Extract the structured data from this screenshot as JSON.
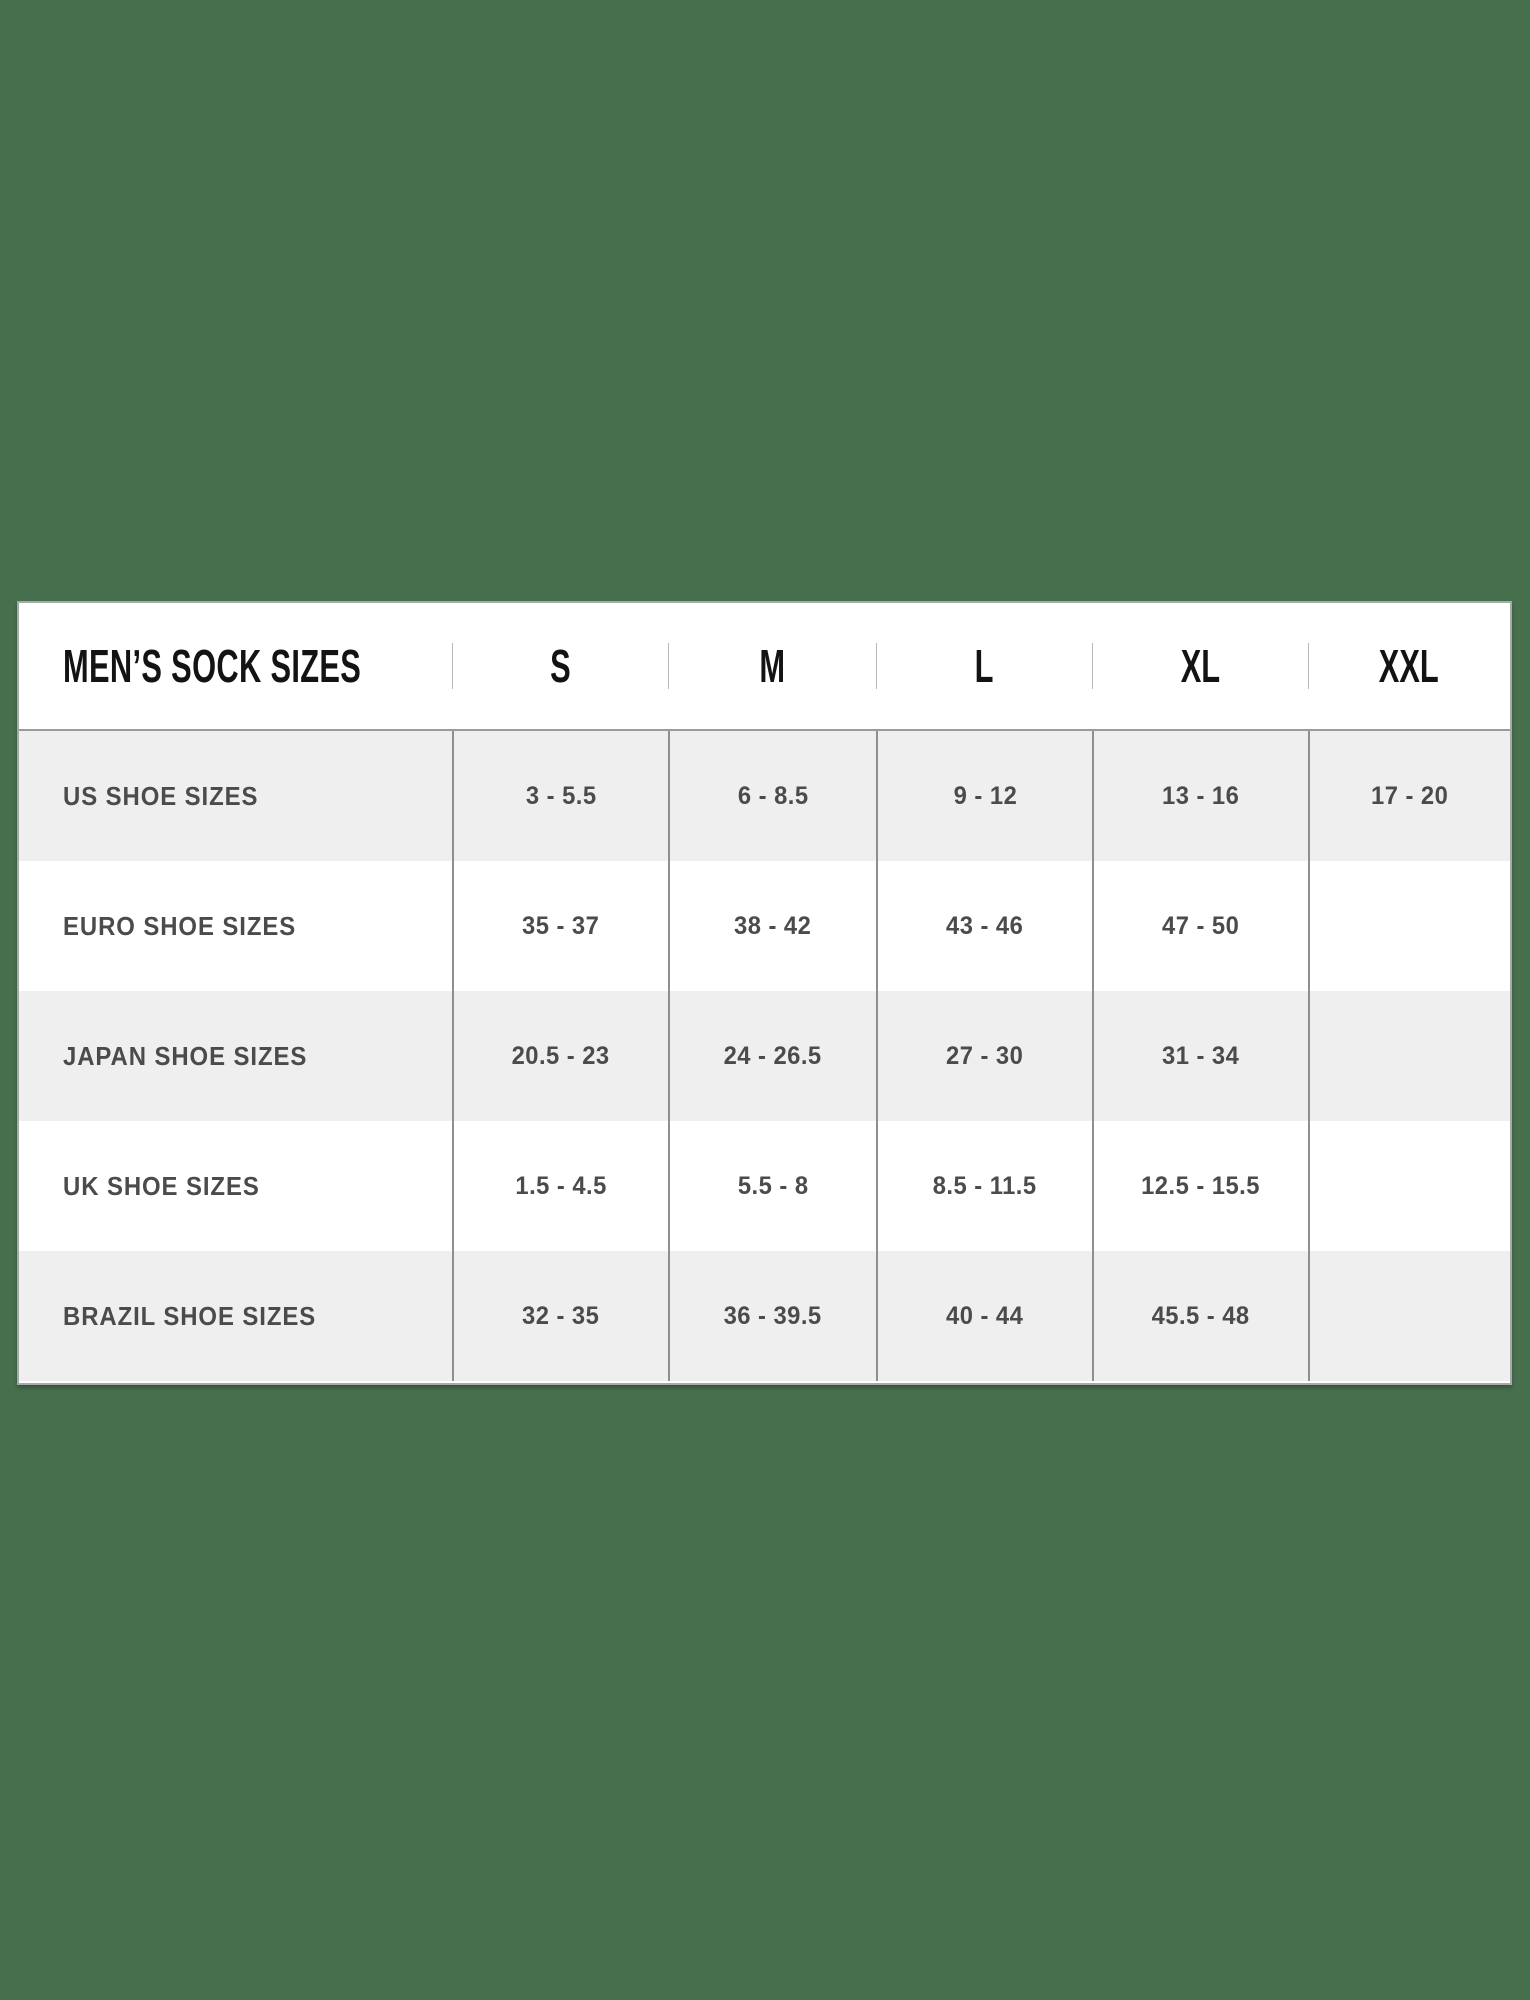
{
  "colors": {
    "background": "#46704d",
    "table_background": "#ffffff",
    "shaded_row": "#efefef",
    "border": "#a9a9a9",
    "divider": "#8f8f8f",
    "header_text": "#131313",
    "body_text": "#4b4b4b"
  },
  "chart_data": {
    "type": "table",
    "title": "MEN’S SOCK SIZES",
    "sizes": [
      "S",
      "M",
      "L",
      "XL",
      "XXL"
    ],
    "rows": [
      {
        "label": "US SHOE SIZES",
        "values": [
          "3 - 5.5",
          "6 - 8.5",
          "9 - 12",
          "13 - 16",
          "17 - 20"
        ]
      },
      {
        "label": "EURO SHOE SIZES",
        "values": [
          "35 - 37",
          "38 - 42",
          "43 - 46",
          "47 - 50",
          ""
        ]
      },
      {
        "label": "JAPAN SHOE SIZES",
        "values": [
          "20.5 - 23",
          "24 - 26.5",
          "27 - 30",
          "31 - 34",
          ""
        ]
      },
      {
        "label": "UK SHOE SIZES",
        "values": [
          "1.5 - 4.5",
          "5.5 - 8",
          "8.5 - 11.5",
          "12.5 - 15.5",
          ""
        ]
      },
      {
        "label": "BRAZIL SHOE SIZES",
        "values": [
          "32 - 35",
          "36 - 39.5",
          "40 - 44",
          "45.5 - 48",
          ""
        ]
      }
    ]
  }
}
